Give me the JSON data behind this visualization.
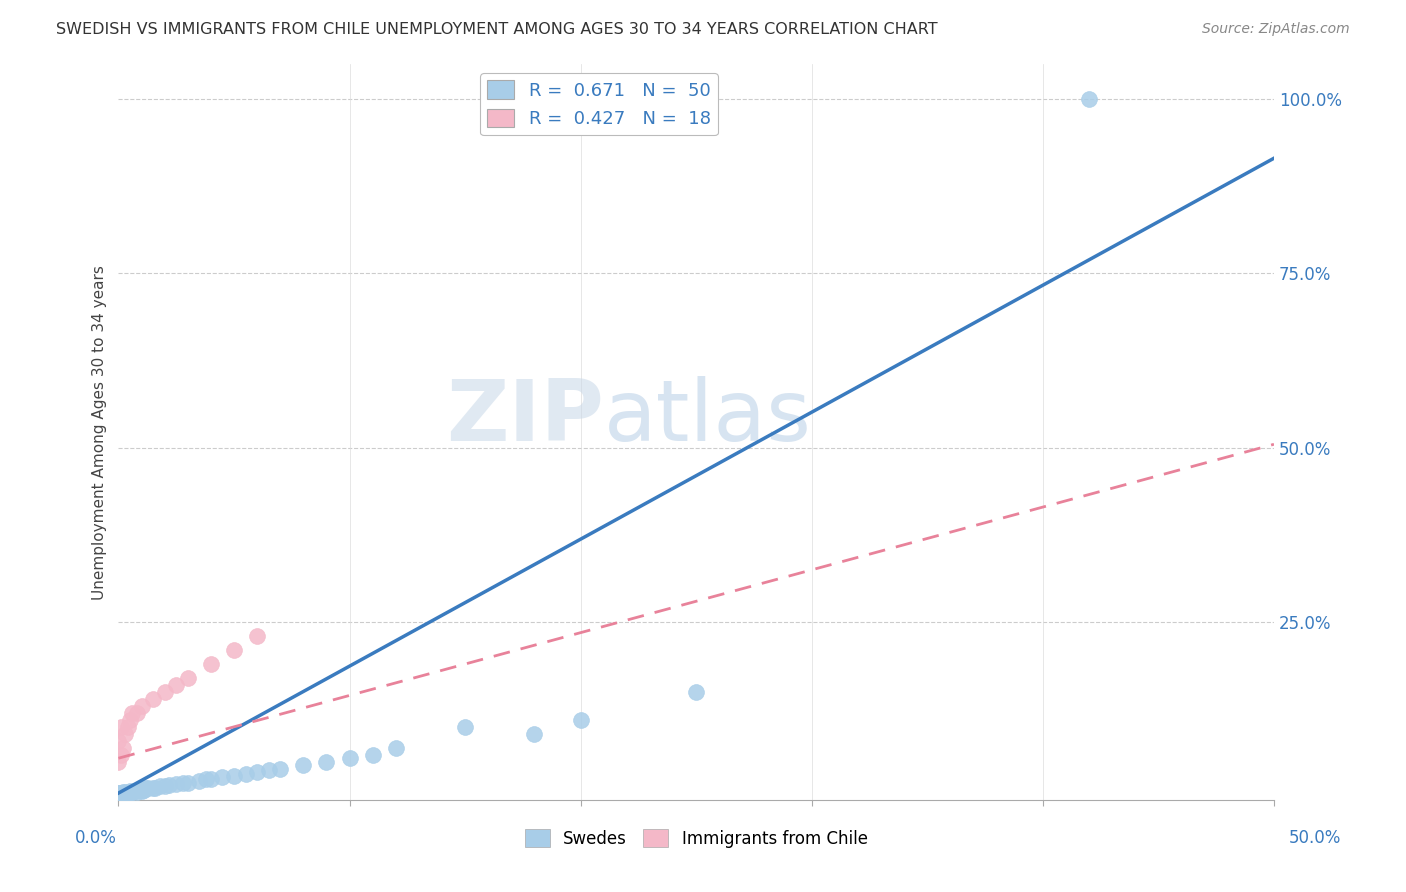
{
  "title": "SWEDISH VS IMMIGRANTS FROM CHILE UNEMPLOYMENT AMONG AGES 30 TO 34 YEARS CORRELATION CHART",
  "source": "Source: ZipAtlas.com",
  "ylabel": "Unemployment Among Ages 30 to 34 years",
  "watermark_zip": "ZIP",
  "watermark_atlas": "atlas",
  "xlim": [
    0,
    0.5
  ],
  "ylim": [
    -0.005,
    1.05
  ],
  "ytick_vals": [
    0.0,
    0.25,
    0.5,
    0.75,
    1.0
  ],
  "ytick_labels": [
    "",
    "25.0%",
    "50.0%",
    "75.0%",
    "100.0%"
  ],
  "swedes_R": 0.671,
  "swedes_N": 50,
  "chile_R": 0.427,
  "chile_N": 18,
  "blue_scatter_color": "#a8cde8",
  "pink_scatter_color": "#f4b8c8",
  "blue_line_color": "#3a7bbf",
  "pink_line_color": "#e8829a",
  "blue_line_slope": 1.82,
  "blue_line_intercept": 0.005,
  "pink_line_slope": 0.9,
  "pink_line_intercept": 0.055,
  "swedes_x": [
    0.0,
    0.0,
    0.0,
    0.0,
    0.0,
    0.001,
    0.001,
    0.002,
    0.002,
    0.003,
    0.003,
    0.004,
    0.005,
    0.005,
    0.006,
    0.007,
    0.008,
    0.009,
    0.01,
    0.01,
    0.011,
    0.012,
    0.013,
    0.015,
    0.016,
    0.018,
    0.02,
    0.022,
    0.025,
    0.028,
    0.03,
    0.035,
    0.038,
    0.04,
    0.045,
    0.05,
    0.055,
    0.06,
    0.065,
    0.07,
    0.08,
    0.09,
    0.1,
    0.11,
    0.12,
    0.15,
    0.18,
    0.2,
    0.25,
    0.42
  ],
  "swedes_y": [
    0.0,
    0.0,
    0.0,
    0.005,
    0.005,
    0.0,
    0.005,
    0.003,
    0.006,
    0.004,
    0.007,
    0.005,
    0.005,
    0.008,
    0.006,
    0.008,
    0.007,
    0.01,
    0.008,
    0.01,
    0.01,
    0.012,
    0.012,
    0.012,
    0.013,
    0.015,
    0.015,
    0.016,
    0.018,
    0.02,
    0.02,
    0.022,
    0.025,
    0.025,
    0.028,
    0.03,
    0.032,
    0.035,
    0.038,
    0.04,
    0.045,
    0.05,
    0.055,
    0.06,
    0.07,
    0.1,
    0.09,
    0.11,
    0.15,
    1.0
  ],
  "chile_x": [
    0.0,
    0.0,
    0.001,
    0.001,
    0.002,
    0.003,
    0.004,
    0.005,
    0.006,
    0.008,
    0.01,
    0.015,
    0.02,
    0.025,
    0.03,
    0.04,
    0.05,
    0.06
  ],
  "chile_y": [
    0.05,
    0.08,
    0.06,
    0.1,
    0.07,
    0.09,
    0.1,
    0.11,
    0.12,
    0.12,
    0.13,
    0.14,
    0.15,
    0.16,
    0.17,
    0.19,
    0.21,
    0.23
  ]
}
